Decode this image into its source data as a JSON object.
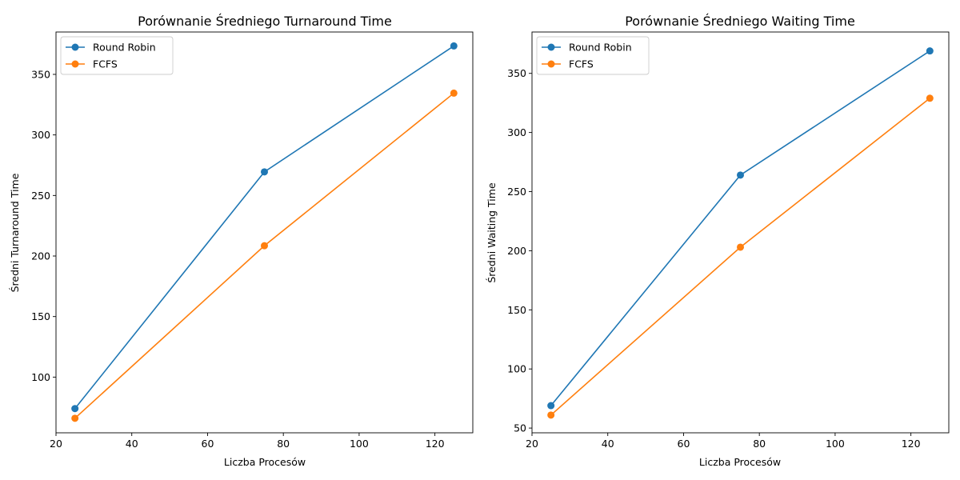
{
  "chart_data": [
    {
      "type": "line",
      "title": "Porównanie Średniego Turnaround Time",
      "xlabel": "Liczba Procesów",
      "ylabel": "Średni Turnaround Time",
      "x": [
        25,
        75,
        125
      ],
      "xlim": [
        20,
        130
      ],
      "ylim": [
        54,
        385
      ],
      "xticks": [
        20,
        40,
        60,
        80,
        100,
        120
      ],
      "yticks": [
        100,
        150,
        200,
        250,
        300,
        350
      ],
      "grid": false,
      "legend_position": "top-left",
      "series": [
        {
          "name": "Round Robin",
          "color": "#1f77b4",
          "marker": "circle",
          "values": [
            74,
            269.5,
            373.5
          ]
        },
        {
          "name": "FCFS",
          "color": "#ff7f0e",
          "marker": "circle",
          "values": [
            66,
            208.5,
            334.5
          ]
        }
      ]
    },
    {
      "type": "line",
      "title": "Porównanie Średniego Waiting Time",
      "xlabel": "Liczba Procesów",
      "ylabel": "Średni Waiting Time",
      "x": [
        25,
        75,
        125
      ],
      "xlim": [
        20,
        130
      ],
      "ylim": [
        46,
        385
      ],
      "xticks": [
        20,
        40,
        60,
        80,
        100,
        120
      ],
      "yticks": [
        50,
        100,
        150,
        200,
        250,
        300,
        350
      ],
      "grid": false,
      "legend_position": "top-left",
      "series": [
        {
          "name": "Round Robin",
          "color": "#1f77b4",
          "marker": "circle",
          "values": [
            69,
            264,
            369
          ]
        },
        {
          "name": "FCFS",
          "color": "#ff7f0e",
          "marker": "circle",
          "values": [
            61,
            203,
            329
          ]
        }
      ]
    }
  ]
}
